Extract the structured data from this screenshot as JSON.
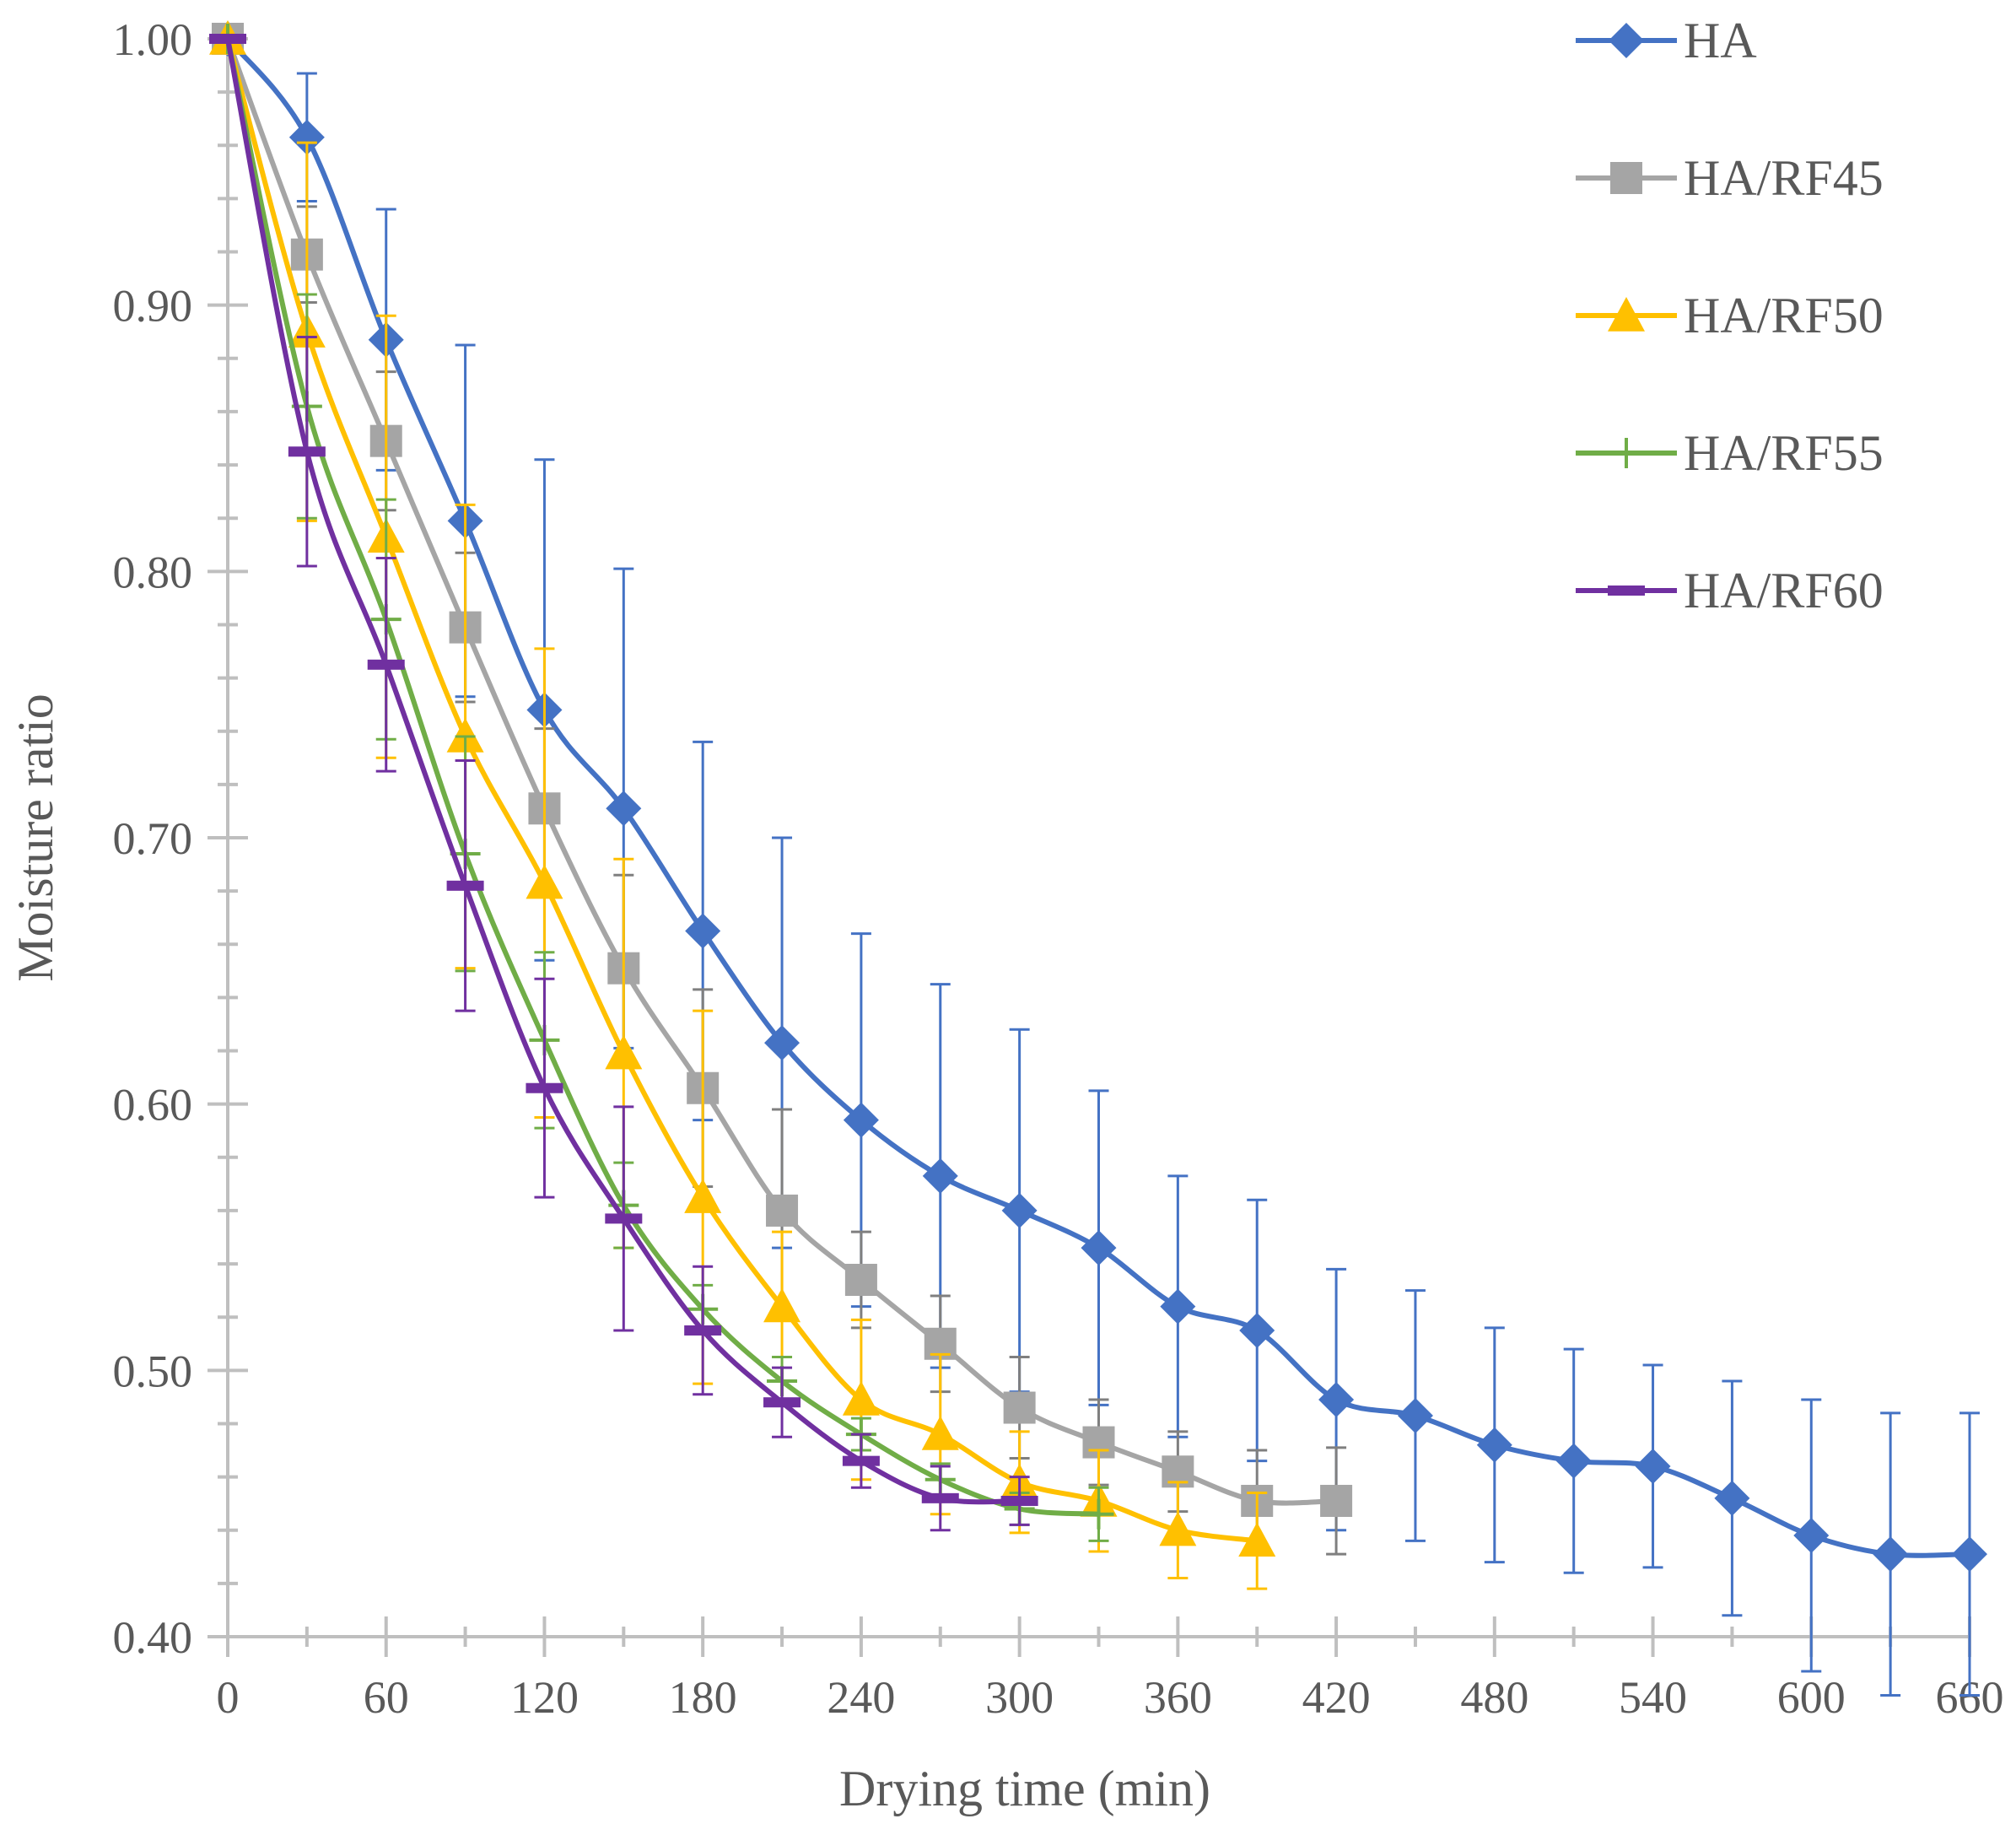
{
  "chart_data": {
    "type": "line",
    "title": "",
    "xlabel": "Drying time (min)",
    "ylabel": "Moisture ratio",
    "xlim": [
      0,
      660
    ],
    "ylim": [
      0.4,
      1.0
    ],
    "x_ticks": [
      "0",
      "60",
      "120",
      "180",
      "240",
      "300",
      "360",
      "420",
      "480",
      "540",
      "600",
      "660"
    ],
    "y_ticks": [
      "0.40",
      "0.50",
      "0.60",
      "0.70",
      "0.80",
      "0.90",
      "1.00"
    ],
    "grid": false,
    "legend_position": "top-right",
    "smooth": true,
    "series": [
      {
        "name": "HA",
        "color": "#4472C4",
        "marker": "diamond",
        "x": [
          0,
          30,
          60,
          90,
          120,
          150,
          180,
          210,
          240,
          270,
          300,
          330,
          360,
          390,
          420,
          450,
          480,
          510,
          540,
          570,
          600,
          630,
          660
        ],
        "values": [
          1.0,
          0.963,
          0.887,
          0.819,
          0.748,
          0.711,
          0.665,
          0.623,
          0.594,
          0.573,
          0.56,
          0.546,
          0.524,
          0.515,
          0.489,
          0.483,
          0.472,
          0.466,
          0.464,
          0.452,
          0.438,
          0.431,
          0.431
        ],
        "errors": [
          0.0,
          0.024,
          0.049,
          0.066,
          0.094,
          0.09,
          0.071,
          0.077,
          0.07,
          0.072,
          0.068,
          0.059,
          0.049,
          0.049,
          0.049,
          0.047,
          0.044,
          0.042,
          0.038,
          0.044,
          0.051,
          0.053,
          0.053
        ]
      },
      {
        "name": "HA/RF45",
        "color": "#A5A5A5",
        "error_color": "#7F7F7F",
        "marker": "square",
        "x": [
          0,
          30,
          60,
          90,
          120,
          150,
          180,
          210,
          240,
          270,
          300,
          330,
          360,
          390,
          420
        ],
        "values": [
          1.0,
          0.919,
          0.849,
          0.779,
          0.711,
          0.651,
          0.606,
          0.56,
          0.534,
          0.51,
          0.486,
          0.473,
          0.462,
          0.451,
          0.451
        ],
        "errors": [
          0.0,
          0.018,
          0.026,
          0.028,
          0.03,
          0.035,
          0.037,
          0.038,
          0.018,
          0.018,
          0.019,
          0.016,
          0.015,
          0.019,
          0.02
        ]
      },
      {
        "name": "HA/RF50",
        "color": "#FFC000",
        "marker": "triangle",
        "x": [
          0,
          30,
          60,
          90,
          120,
          150,
          180,
          210,
          240,
          270,
          300,
          330,
          360,
          390
        ],
        "values": [
          1.0,
          0.89,
          0.813,
          0.738,
          0.683,
          0.619,
          0.565,
          0.524,
          0.489,
          0.476,
          0.458,
          0.451,
          0.44,
          0.436
        ],
        "errors": [
          0.0,
          0.071,
          0.083,
          0.087,
          0.088,
          0.073,
          0.07,
          0.028,
          0.03,
          0.03,
          0.019,
          0.019,
          0.018,
          0.018
        ]
      },
      {
        "name": "HA/RF55",
        "color": "#70AD47",
        "marker": "plus",
        "x": [
          0,
          30,
          60,
          90,
          120,
          150,
          180,
          210,
          240,
          270,
          300,
          330
        ],
        "values": [
          1.0,
          0.862,
          0.782,
          0.694,
          0.624,
          0.562,
          0.523,
          0.496,
          0.476,
          0.459,
          0.448,
          0.446
        ],
        "errors": [
          0.0,
          0.042,
          0.045,
          0.044,
          0.033,
          0.016,
          0.009,
          0.009,
          0.006,
          0.006,
          0.006,
          0.01
        ]
      },
      {
        "name": "HA/RF60",
        "color": "#7030A0",
        "marker": "dash",
        "x": [
          0,
          30,
          60,
          90,
          120,
          150,
          180,
          210,
          240,
          270,
          300
        ],
        "values": [
          1.0,
          0.845,
          0.765,
          0.682,
          0.606,
          0.557,
          0.515,
          0.488,
          0.466,
          0.452,
          0.451
        ],
        "errors": [
          0.0,
          0.043,
          0.04,
          0.047,
          0.041,
          0.042,
          0.024,
          0.013,
          0.01,
          0.012,
          0.009
        ]
      }
    ]
  }
}
